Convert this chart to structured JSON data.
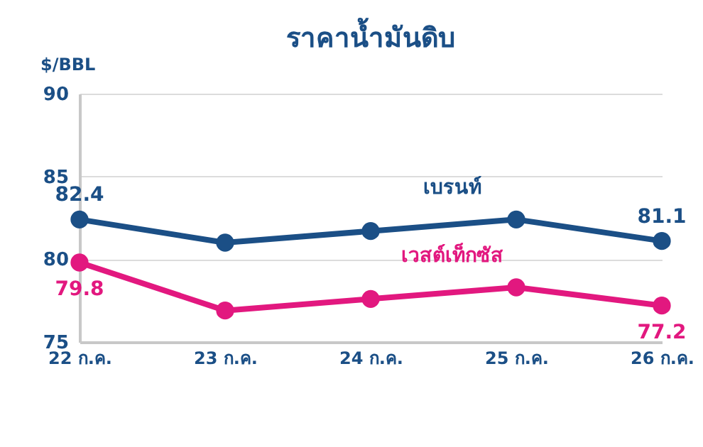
{
  "chart_data": {
    "type": "line",
    "title": "ราคาน้ำมันดิบ",
    "ylabel": "$/BBL",
    "categories": [
      "22 ก.ค.",
      "23 ก.ค.",
      "24 ก.ค.",
      "25 ก.ค.",
      "26 ก.ค."
    ],
    "series": [
      {
        "name": "เบรนท์",
        "color": "#1b4f86",
        "values": [
          82.4,
          81.0,
          81.7,
          82.4,
          81.1
        ],
        "value_labels": [
          "82.4",
          null,
          null,
          null,
          "81.1"
        ]
      },
      {
        "name": "เวสต์เท็กซัส",
        "color": "#e2187f",
        "values": [
          79.8,
          76.9,
          77.6,
          78.3,
          77.2
        ],
        "value_labels": [
          "79.8",
          null,
          null,
          null,
          "77.2"
        ]
      }
    ],
    "ylim": [
      75,
      90
    ],
    "yticks": [
      75,
      80,
      85,
      90
    ],
    "grid": "y",
    "marker": "circle",
    "line_style": "solid"
  }
}
